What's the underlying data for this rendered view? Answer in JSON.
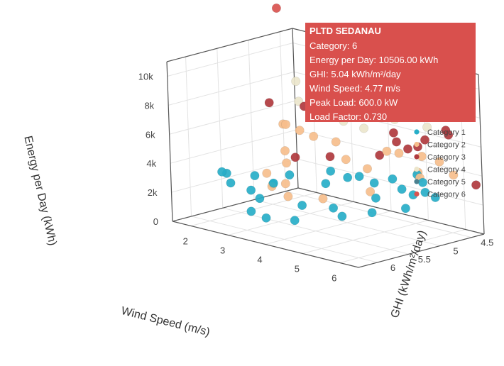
{
  "chart_data": {
    "type": "scatter",
    "mode": "3d",
    "x_axis": {
      "label": "Wind Speed (m/s)",
      "ticks": [
        "2",
        "3",
        "4",
        "5",
        "6"
      ],
      "range": [
        1.5,
        6.5
      ]
    },
    "y_axis": {
      "label": "GHI (kWh/m²/day)",
      "ticks": [
        "4.5",
        "5",
        "5.5",
        "6"
      ],
      "range": [
        4.3,
        6.3
      ]
    },
    "z_axis": {
      "label": "Energy per Day (kWh)",
      "ticks": [
        "0",
        "2k",
        "4k",
        "6k",
        "8k",
        "10k"
      ],
      "range": [
        0,
        11000
      ]
    },
    "legend": {
      "placement": "right",
      "entries": [
        {
          "name": "Category 1",
          "color": "#27aec8"
        },
        {
          "name": "Category 2",
          "color": "#f6be8c"
        },
        {
          "name": "Category 3",
          "color": "#b03a3e"
        },
        {
          "name": "Category 4",
          "color": "#ece6cc"
        },
        {
          "name": "Category 5",
          "color": "#4c8190"
        },
        {
          "name": "Category 6",
          "color": "#d9534f"
        }
      ]
    },
    "series": [
      {
        "name": "Category 1",
        "color": "#27aec8",
        "points": [
          [
            2.2,
            5.9,
            3400
          ],
          [
            2.6,
            6.0,
            3000
          ],
          [
            2.9,
            5.5,
            2600
          ],
          [
            3.4,
            5.8,
            3200
          ],
          [
            3.8,
            5.2,
            2800
          ],
          [
            4.2,
            4.9,
            3200
          ],
          [
            4.6,
            4.9,
            3000
          ],
          [
            5.0,
            4.7,
            2600
          ],
          [
            5.3,
            4.7,
            2400
          ],
          [
            4.8,
            5.0,
            2200
          ],
          [
            5.6,
            5.0,
            2000
          ],
          [
            5.2,
            5.3,
            1800
          ],
          [
            4.5,
            5.5,
            1900
          ],
          [
            3.3,
            6.1,
            1600
          ],
          [
            3.7,
            6.1,
            1400
          ],
          [
            4.3,
            6.0,
            1500
          ],
          [
            2.4,
            5.5,
            2800
          ],
          [
            3.0,
            5.3,
            3000
          ],
          [
            3.6,
            5.0,
            3300
          ],
          [
            5.4,
            4.6,
            3200
          ],
          [
            5.8,
            4.8,
            3000
          ],
          [
            2.8,
            5.8,
            2400
          ],
          [
            4.0,
            5.7,
            2000
          ],
          [
            5.1,
            4.9,
            3600
          ],
          [
            5.6,
            4.8,
            4100
          ],
          [
            4.4,
            5.2,
            3600
          ],
          [
            5.9,
            4.7,
            2600
          ],
          [
            3.2,
            5.9,
            2200
          ],
          [
            4.9,
            5.6,
            1700
          ],
          [
            2.5,
            6.0,
            3600
          ]
        ]
      },
      {
        "name": "Category 2",
        "color": "#f6be8c",
        "points": [
          [
            2.6,
            5.1,
            6000
          ],
          [
            2.8,
            5.0,
            5600
          ],
          [
            3.0,
            4.9,
            5200
          ],
          [
            2.9,
            5.3,
            4600
          ],
          [
            3.6,
            4.9,
            5200
          ],
          [
            4.2,
            5.1,
            4600
          ],
          [
            4.8,
            4.8,
            5200
          ],
          [
            5.4,
            4.6,
            5000
          ],
          [
            5.7,
            4.5,
            4700
          ],
          [
            5.8,
            4.9,
            4500
          ],
          [
            3.4,
            5.6,
            3000
          ],
          [
            3.8,
            5.8,
            2600
          ],
          [
            4.4,
            5.6,
            2600
          ],
          [
            2.7,
            5.2,
            6200
          ],
          [
            4.6,
            5.0,
            4100
          ],
          [
            5.0,
            5.2,
            3000
          ],
          [
            5.5,
            4.7,
            3700
          ],
          [
            3.2,
            5.7,
            2800
          ],
          [
            2.9,
            5.6,
            3400
          ],
          [
            3.1,
            5.4,
            4000
          ],
          [
            5.9,
            4.4,
            3800
          ],
          [
            5.3,
            4.9,
            5500
          ]
        ]
      },
      {
        "name": "Category 3",
        "color": "#b03a3e",
        "points": [
          [
            2.0,
            5.0,
            7000
          ],
          [
            2.6,
            4.8,
            6900
          ],
          [
            3.6,
            5.0,
            4300
          ],
          [
            4.6,
            4.8,
            4800
          ],
          [
            5.3,
            4.6,
            5600
          ],
          [
            5.5,
            4.6,
            6200
          ],
          [
            5.0,
            4.8,
            6600
          ],
          [
            5.8,
            4.4,
            6500
          ],
          [
            6.5,
            4.4,
            3500
          ],
          [
            4.9,
            4.7,
            5800
          ],
          [
            5.9,
            4.5,
            7000
          ],
          [
            3.0,
            5.2,
            4100
          ],
          [
            5.2,
            4.7,
            5500
          ]
        ]
      },
      {
        "name": "Category 4",
        "color": "#ece6cc",
        "points": [
          [
            2.4,
            4.8,
            8500
          ],
          [
            3.0,
            4.8,
            8000
          ],
          [
            3.4,
            4.7,
            8700
          ],
          [
            3.8,
            4.7,
            8600
          ],
          [
            4.4,
            4.5,
            8700
          ],
          [
            5.2,
            4.4,
            8900
          ],
          [
            5.6,
            4.3,
            7600
          ],
          [
            4.0,
            5.0,
            7000
          ],
          [
            2.8,
            5.0,
            7600
          ],
          [
            3.2,
            4.9,
            7400
          ],
          [
            4.7,
            4.6,
            7100
          ],
          [
            3.6,
            4.9,
            8200
          ],
          [
            5.4,
            4.5,
            6900
          ],
          [
            4.2,
            4.8,
            6400
          ]
        ]
      },
      {
        "name": "Category 5",
        "color": "#4c8190",
        "points": [
          [
            3.8,
            4.5,
            9500
          ],
          [
            4.4,
            4.5,
            8500
          ],
          [
            5.0,
            4.4,
            10400
          ],
          [
            4.9,
            4.6,
            7900
          ]
        ]
      },
      {
        "name": "Category 6",
        "color": "#d9534f",
        "points": [
          [
            1.6,
            4.6,
            12800
          ],
          [
            4.77,
            5.04,
            10506
          ],
          [
            4.6,
            4.5,
            10400
          ],
          [
            5.1,
            4.4,
            10700
          ],
          [
            5.0,
            4.4,
            9500
          ]
        ]
      }
    ],
    "hover": {
      "title": "PLTD SEDANAU",
      "lines": [
        "Category: 6",
        "Energy per Day: 10506.00 kWh",
        "GHI: 5.04 kWh/m²/day",
        "Wind Speed: 4.77 m/s",
        "Peak Load: 600.0 kW",
        "Load Factor: 0.730"
      ],
      "point": [
        4.77,
        5.04,
        10506
      ],
      "color": "#d9504d"
    }
  }
}
